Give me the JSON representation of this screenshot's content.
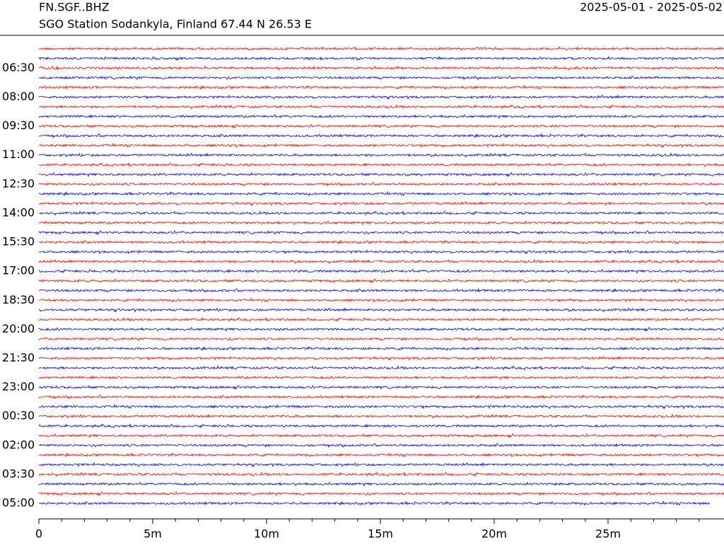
{
  "chart_data": {
    "type": "helicorder",
    "title": "FN.SGF..BHZ",
    "subtitle": "SGO Station Sodankyla, Finland  67.44 N 26.53 E",
    "date_range": "2025-05-01 - 2025-05-02",
    "categories": [
      null,
      null,
      "06:30",
      null,
      null,
      "08:00",
      null,
      null,
      "09:30",
      null,
      null,
      "11:00",
      null,
      null,
      "12:30",
      null,
      null,
      "14:00",
      null,
      null,
      "15:30",
      null,
      null,
      "17:00",
      null,
      null,
      "18:30",
      null,
      null,
      "20:00",
      null,
      null,
      "21:30",
      null,
      null,
      "23:00",
      null,
      null,
      "00:30",
      null,
      null,
      "02:00",
      null,
      null,
      "03:30",
      null,
      null,
      "05:00"
    ],
    "colors": [
      "#ff0000",
      "#0000ff"
    ],
    "xlim": [
      0,
      30
    ],
    "xticks": [
      0,
      {
        "value": 5,
        "label": "5m"
      },
      {
        "value": 10,
        "label": "10m"
      },
      {
        "value": 15,
        "label": "15m"
      },
      {
        "value": 20,
        "label": "20m"
      },
      {
        "value": 25,
        "label": "25m"
      }
    ],
    "minor_xticks": [
      1,
      2,
      3,
      4,
      6,
      7,
      8,
      9,
      11,
      12,
      13,
      14,
      16,
      17,
      18,
      19,
      21,
      22,
      23,
      24,
      26,
      27,
      28,
      29
    ],
    "last_trace_end": 29.5
  }
}
